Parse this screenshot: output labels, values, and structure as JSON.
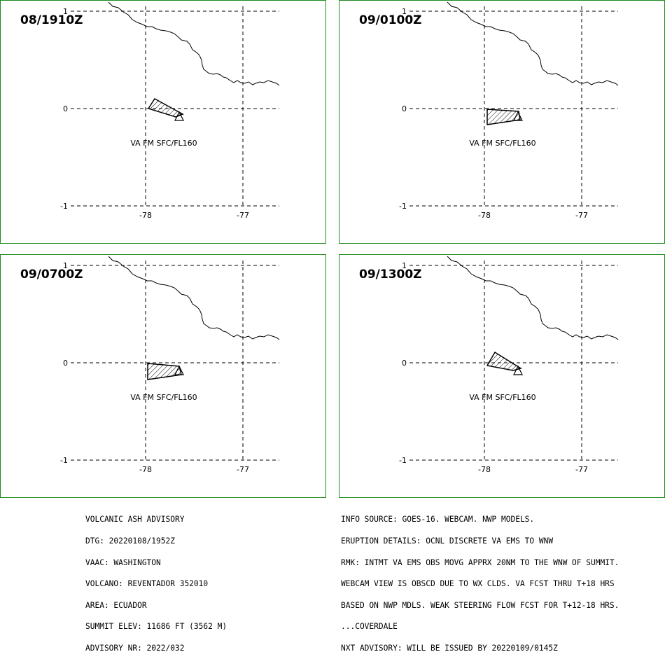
{
  "panels": [
    {
      "time": "08/1910Z",
      "label": "VA FM SFC/FL160",
      "lat_ticks": [
        "1",
        "0",
        "-1"
      ],
      "lon_ticks": [
        "-78",
        "-77"
      ]
    },
    {
      "time": "09/0100Z",
      "label": "VA FM SFC/FL160",
      "lat_ticks": [
        "1",
        "0",
        "-1"
      ],
      "lon_ticks": [
        "-78",
        "-77"
      ]
    },
    {
      "time": "09/0700Z",
      "label": "VA FM SFC/FL160",
      "lat_ticks": [
        "1",
        "0",
        "-1"
      ],
      "lon_ticks": [
        "-78",
        "-77"
      ]
    },
    {
      "time": "09/1300Z",
      "label": "VA FM SFC/FL160",
      "lat_ticks": [
        "1",
        "0",
        "-1"
      ],
      "lon_ticks": [
        "-78",
        "-77"
      ]
    }
  ],
  "advisory_left": [
    "VOLCANIC ASH ADVISORY",
    "DTG: 20220108/1952Z",
    "VAAC: WASHINGTON",
    "VOLCANO: REVENTADOR 352010",
    "AREA: ECUADOR",
    "SUMMIT ELEV: 11686 FT (3562 M)",
    "ADVISORY NR: 2022/032"
  ],
  "advisory_right": [
    "INFO SOURCE: GOES-16. WEBCAM. NWP MODELS.",
    "ERUPTION DETAILS: OCNL DISCRETE VA EMS TO WNW",
    "RMK: INTMT VA EMS OBS MOVG APPRX 20NM TO THE WNW OF SUMMIT.",
    "WEBCAM VIEW IS OBSCD DUE TO WX CLDS. VA FCST THRU T+18 HRS",
    "BASED ON NWP MDLS. WEAK STEERING FLOW FCST FOR T+12-18 HRS.",
    "...COVERDALE",
    "NXT ADVISORY: WILL BE ISSUED BY 20220109/0145Z"
  ],
  "colors": {
    "panel_border": "#1a8a1a"
  }
}
